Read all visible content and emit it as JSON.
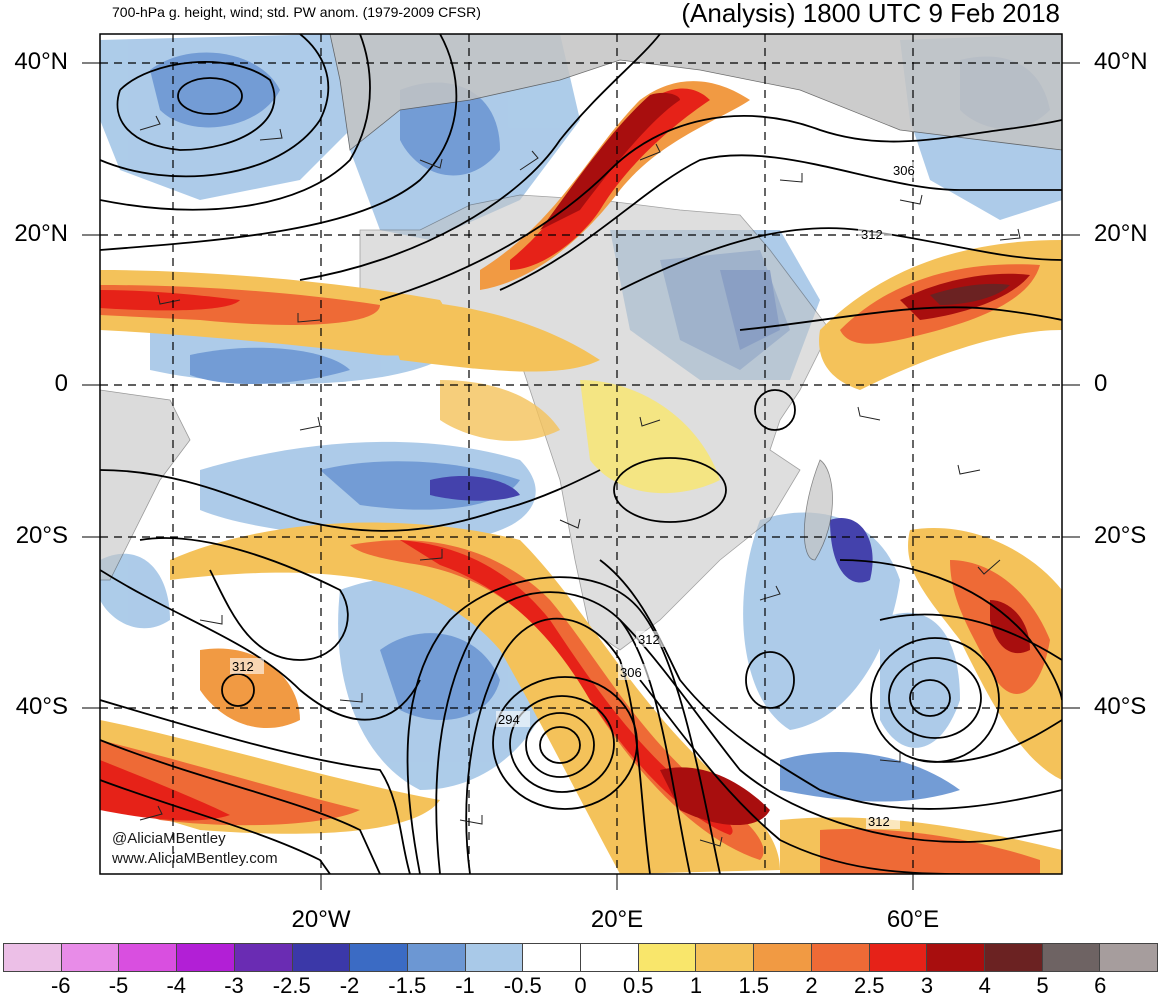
{
  "header": {
    "subtitle": "700-hPa g. height, wind; std. PW anom. (1979-2009 CFSR)",
    "title": "(Analysis) 1800 UTC 9 Feb 2018"
  },
  "lat_labels": [
    "40°N",
    "20°N",
    "0",
    "20°S",
    "40°S"
  ],
  "lon_labels": [
    "20°W",
    "20°E",
    "60°E"
  ],
  "contour_labels": [
    "306",
    "312",
    "312",
    "306",
    "312",
    "294",
    "312"
  ],
  "watermark": [
    "@AliciaMBentley",
    "www.AliciaMBentley.com"
  ],
  "colorbar": {
    "ticks": [
      "-6",
      "-5",
      "-4",
      "-3",
      "-2.5",
      "-2",
      "-1.5",
      "-1",
      "-0.5",
      "0",
      "0.5",
      "1",
      "1.5",
      "2",
      "2.5",
      "3",
      "4",
      "5",
      "6"
    ],
    "colors": [
      "#ecbfe7",
      "#e88ce8",
      "#d94fe0",
      "#b21fd6",
      "#6a2cb3",
      "#3b38a8",
      "#3b6bc4",
      "#6c97d3",
      "#a9c9e8",
      "#ffffff",
      "#ffffff",
      "#f9e66b",
      "#f4c25a",
      "#f19a43",
      "#ee6a36",
      "#e62218",
      "#a80e0e",
      "#6b2222",
      "#6e6363",
      "#a69d9d"
    ]
  },
  "colors": {
    "land": "#c4c4c4",
    "frame": "#000000"
  }
}
